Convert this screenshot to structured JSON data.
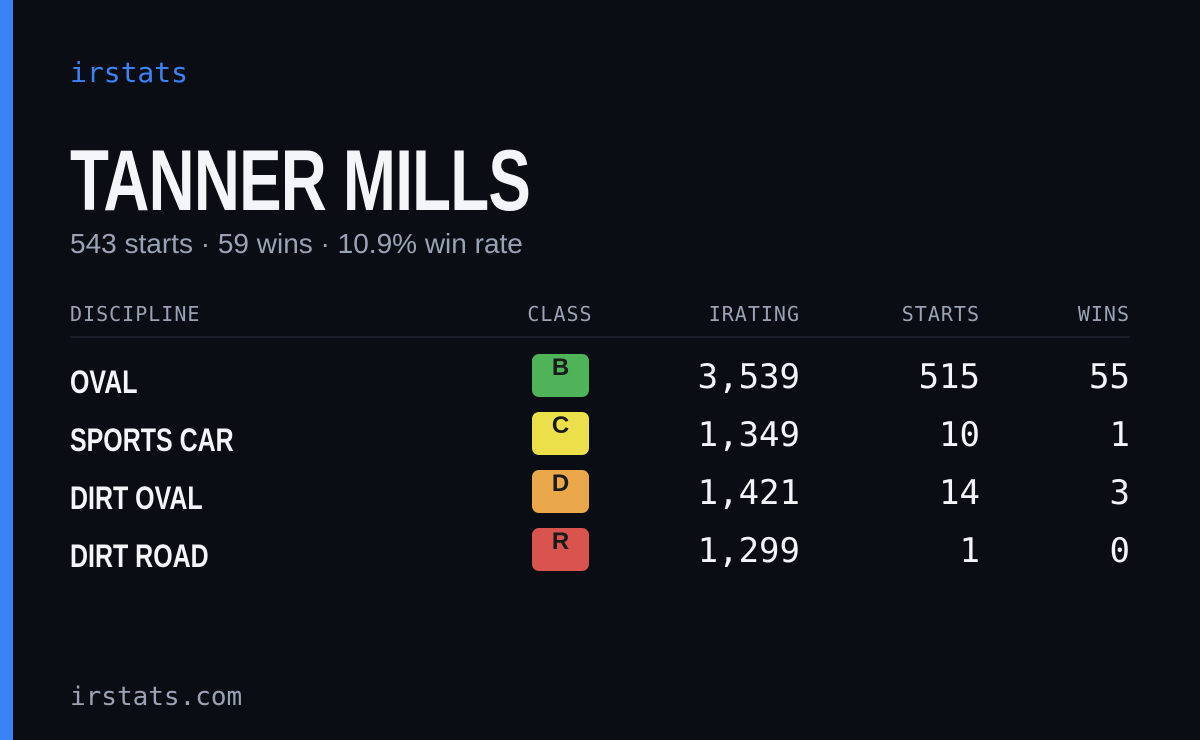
{
  "brand": "irstats",
  "header": {
    "name": "TANNER MILLS",
    "summary": "543 starts · 59 wins · 10.9% win rate"
  },
  "table": {
    "columns": [
      "DISCIPLINE",
      "CLASS",
      "IRATING",
      "STARTS",
      "WINS"
    ],
    "rows": [
      {
        "discipline": "OVAL",
        "class": "B",
        "class_color": "#4fb35a",
        "irating": "3,539",
        "starts": "515",
        "wins": "55"
      },
      {
        "discipline": "SPORTS CAR",
        "class": "C",
        "class_color": "#ebe04a",
        "irating": "1,349",
        "starts": "10",
        "wins": "1"
      },
      {
        "discipline": "DIRT OVAL",
        "class": "D",
        "class_color": "#eba84a",
        "irating": "1,421",
        "starts": "14",
        "wins": "3"
      },
      {
        "discipline": "DIRT ROAD",
        "class": "R",
        "class_color": "#d9534f",
        "irating": "1,299",
        "starts": "1",
        "wins": "0"
      }
    ]
  },
  "footer": "irstats.com"
}
